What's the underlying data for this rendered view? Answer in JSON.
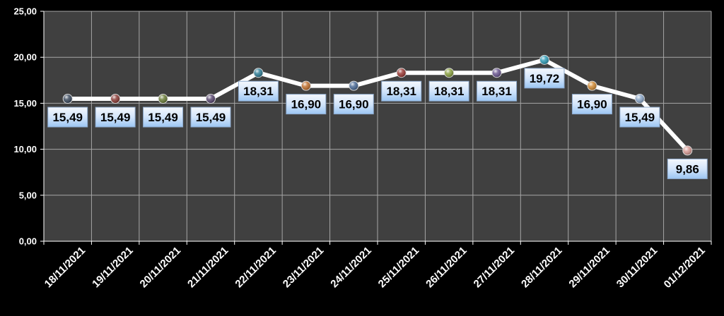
{
  "chart_data": {
    "type": "line",
    "title": "",
    "xlabel": "",
    "ylabel": "",
    "categories": [
      "18/11/2021",
      "19/11/2021",
      "20/11/2021",
      "21/11/2021",
      "22/11/2021",
      "23/11/2021",
      "24/11/2021",
      "25/11/2021",
      "26/11/2021",
      "27/11/2021",
      "28/11/2021",
      "29/11/2021",
      "30/11/2021",
      "01/12/2021"
    ],
    "series": [
      {
        "values": [
          15.49,
          15.49,
          15.49,
          15.49,
          18.31,
          16.9,
          16.9,
          18.31,
          18.31,
          18.31,
          19.72,
          16.9,
          15.49,
          9.86
        ],
        "labels": [
          "15,49",
          "15,49",
          "15,49",
          "15,49",
          "18,31",
          "16,90",
          "16,90",
          "18,31",
          "18,31",
          "18,31",
          "19,72",
          "16,90",
          "15,49",
          "9,86"
        ]
      }
    ],
    "ylim": [
      0,
      25
    ],
    "yticks": [
      0,
      5,
      10,
      15,
      20,
      25
    ],
    "ytick_labels": [
      "0,00",
      "5,00",
      "10,00",
      "15,00",
      "20,00",
      "25,00"
    ],
    "grid": true,
    "legend": "none",
    "colors": {
      "background": "#000000",
      "plot_area": "#404040",
      "grid": "#a6a6a6",
      "line": "#ffffff",
      "label_fill": "#cfe3fb",
      "marker_colors": [
        "#3b4a5e",
        "#8a3a35",
        "#6b7d38",
        "#5a4870",
        "#2f7d96",
        "#c0702e",
        "#4a6a96",
        "#9a3a35",
        "#8aa040",
        "#6a5690",
        "#2f9bb6",
        "#d08a34",
        "#8aa6c8",
        "#d89a94"
      ]
    }
  }
}
